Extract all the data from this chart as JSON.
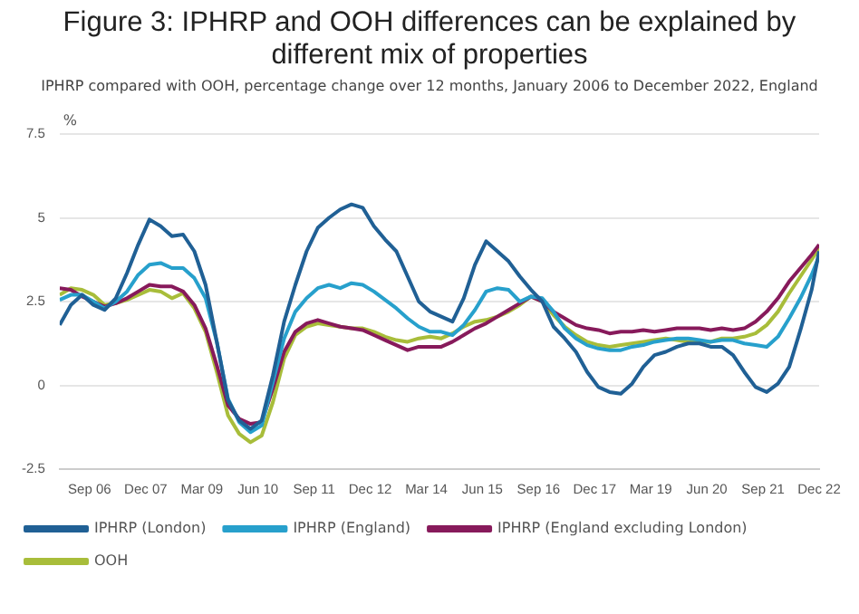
{
  "chart_data": {
    "type": "line",
    "title": "Figure 3: IPHRP and OOH differences can be explained by different mix of properties",
    "subtitle": "IPHRP compared with OOH, percentage change over 12 months, January 2006 to December 2022, England",
    "ylabel": "%",
    "x": [
      "2006-01",
      "2006-04",
      "2006-07",
      "2006-10",
      "2007-01",
      "2007-04",
      "2007-07",
      "2007-10",
      "2008-01",
      "2008-04",
      "2008-07",
      "2008-10",
      "2009-01",
      "2009-04",
      "2009-07",
      "2009-10",
      "2010-01",
      "2010-04",
      "2010-07",
      "2010-10",
      "2011-01",
      "2011-04",
      "2011-07",
      "2011-10",
      "2012-01",
      "2012-04",
      "2012-07",
      "2012-10",
      "2013-01",
      "2013-04",
      "2013-07",
      "2013-10",
      "2014-01",
      "2014-04",
      "2014-07",
      "2014-10",
      "2015-01",
      "2015-04",
      "2015-07",
      "2015-10",
      "2016-01",
      "2016-04",
      "2016-07",
      "2016-10",
      "2017-01",
      "2017-04",
      "2017-07",
      "2017-10",
      "2018-01",
      "2018-04",
      "2018-07",
      "2018-10",
      "2019-01",
      "2019-04",
      "2019-07",
      "2019-10",
      "2020-01",
      "2020-04",
      "2020-07",
      "2020-10",
      "2021-01",
      "2021-04",
      "2021-07",
      "2021-10",
      "2022-01",
      "2022-04",
      "2022-07",
      "2022-10",
      "2022-12"
    ],
    "series": [
      {
        "name": "IPHRP (London)",
        "color": "#206095",
        "values": [
          1.8,
          2.4,
          2.7,
          2.4,
          2.25,
          2.6,
          3.35,
          4.2,
          4.95,
          4.75,
          4.45,
          4.5,
          4.0,
          3.0,
          1.3,
          -0.45,
          -1.05,
          -1.3,
          -1.05,
          0.3,
          1.9,
          3.0,
          4.0,
          4.7,
          5.0,
          5.25,
          5.4,
          5.3,
          4.75,
          4.35,
          4.0,
          3.25,
          2.5,
          2.2,
          2.05,
          1.9,
          2.6,
          3.6,
          4.3,
          4.0,
          3.7,
          3.25,
          2.85,
          2.5,
          1.75,
          1.4,
          1.0,
          0.4,
          -0.05,
          -0.2,
          -0.25,
          0.05,
          0.55,
          0.9,
          1.0,
          1.15,
          1.25,
          1.25,
          1.15,
          1.15,
          0.9,
          0.4,
          -0.05,
          -0.2,
          0.05,
          0.55,
          1.65,
          2.85,
          4.0
        ]
      },
      {
        "name": "IPHRP (England)",
        "color": "#27a0cc",
        "values": [
          2.55,
          2.7,
          2.7,
          2.5,
          2.3,
          2.5,
          2.8,
          3.3,
          3.6,
          3.65,
          3.5,
          3.5,
          3.2,
          2.6,
          1.3,
          -0.4,
          -1.1,
          -1.4,
          -1.2,
          0.1,
          1.4,
          2.2,
          2.6,
          2.9,
          3.0,
          2.9,
          3.05,
          3.0,
          2.8,
          2.55,
          2.3,
          2.0,
          1.75,
          1.6,
          1.6,
          1.5,
          1.8,
          2.25,
          2.8,
          2.9,
          2.85,
          2.5,
          2.65,
          2.6,
          2.2,
          1.7,
          1.4,
          1.2,
          1.1,
          1.05,
          1.05,
          1.15,
          1.2,
          1.3,
          1.35,
          1.4,
          1.4,
          1.35,
          1.3,
          1.35,
          1.35,
          1.25,
          1.2,
          1.15,
          1.45,
          2.0,
          2.6,
          3.3,
          3.85
        ]
      },
      {
        "name": "IPHRP (England excluding London)",
        "color": "#871a5b",
        "values": [
          2.9,
          2.85,
          2.65,
          2.5,
          2.35,
          2.45,
          2.6,
          2.8,
          3.0,
          2.95,
          2.95,
          2.8,
          2.4,
          1.7,
          0.6,
          -0.6,
          -1.0,
          -1.15,
          -1.1,
          -0.1,
          1.0,
          1.6,
          1.85,
          1.95,
          1.85,
          1.75,
          1.7,
          1.65,
          1.5,
          1.35,
          1.2,
          1.05,
          1.15,
          1.15,
          1.15,
          1.3,
          1.5,
          1.7,
          1.85,
          2.05,
          2.25,
          2.45,
          2.65,
          2.5,
          2.2,
          2.0,
          1.8,
          1.7,
          1.65,
          1.55,
          1.6,
          1.6,
          1.65,
          1.6,
          1.65,
          1.7,
          1.7,
          1.7,
          1.65,
          1.7,
          1.65,
          1.7,
          1.9,
          2.2,
          2.6,
          3.1,
          3.5,
          3.9,
          4.2
        ]
      },
      {
        "name": "OOH",
        "color": "#a8bd3a",
        "values": [
          2.7,
          2.9,
          2.85,
          2.7,
          2.4,
          2.45,
          2.55,
          2.7,
          2.85,
          2.8,
          2.6,
          2.75,
          2.3,
          1.6,
          0.4,
          -0.9,
          -1.45,
          -1.7,
          -1.5,
          -0.5,
          0.8,
          1.5,
          1.75,
          1.85,
          1.8,
          1.75,
          1.7,
          1.7,
          1.6,
          1.45,
          1.35,
          1.3,
          1.4,
          1.45,
          1.4,
          1.55,
          1.75,
          1.9,
          1.95,
          2.05,
          2.2,
          2.4,
          2.65,
          2.5,
          2.1,
          1.75,
          1.5,
          1.3,
          1.2,
          1.15,
          1.2,
          1.25,
          1.3,
          1.35,
          1.4,
          1.35,
          1.3,
          1.3,
          1.3,
          1.4,
          1.4,
          1.45,
          1.55,
          1.8,
          2.2,
          2.75,
          3.25,
          3.75,
          4.1
        ]
      }
    ],
    "xlim": [
      "2006-01",
      "2022-12"
    ],
    "xticks": [
      {
        "value": "2006-09",
        "label": "Sep 06"
      },
      {
        "value": "2007-12",
        "label": "Dec 07"
      },
      {
        "value": "2009-03",
        "label": "Mar 09"
      },
      {
        "value": "2010-06",
        "label": "Jun 10"
      },
      {
        "value": "2011-09",
        "label": "Sep 11"
      },
      {
        "value": "2012-12",
        "label": "Dec 12"
      },
      {
        "value": "2014-03",
        "label": "Mar 14"
      },
      {
        "value": "2015-06",
        "label": "Jun 15"
      },
      {
        "value": "2016-09",
        "label": "Sep 16"
      },
      {
        "value": "2017-12",
        "label": "Dec 17"
      },
      {
        "value": "2019-03",
        "label": "Mar 19"
      },
      {
        "value": "2020-06",
        "label": "Jun 20"
      },
      {
        "value": "2021-09",
        "label": "Sep 21"
      },
      {
        "value": "2022-12",
        "label": "Dec 22"
      }
    ],
    "ylim": [
      -2.5,
      7.5
    ],
    "yticks": [
      -2.5,
      0,
      2.5,
      5,
      7.5
    ],
    "grid": "y",
    "legend": "bottom",
    "marker": "none",
    "line_style": "solid"
  }
}
